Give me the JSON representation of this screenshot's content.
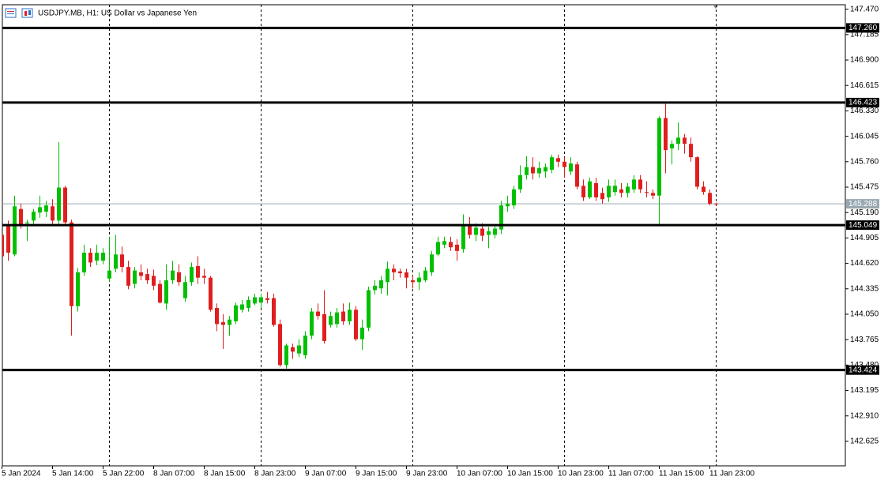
{
  "chart_data": {
    "type": "candlestick",
    "title": "USDJPY.MB, H1:  US Dollar vs Japanese Yen",
    "up_color": "#00c000",
    "down_color": "#e01e1e",
    "ylim": [
      142.35,
      147.52
    ],
    "yticks": [
      {
        "value": 147.47,
        "label": "147.470"
      },
      147.185,
      {
        "value": 146.9,
        "label": "146.900"
      },
      146.615,
      {
        "value": 146.33,
        "label": "146.330"
      },
      146.045,
      {
        "value": 145.76,
        "label": "145.760"
      },
      145.475,
      {
        "value": 145.19,
        "label": "145.190"
      },
      144.905,
      {
        "value": 144.62,
        "label": "144.620"
      },
      144.335,
      {
        "value": 144.05,
        "label": "144.050"
      },
      143.765,
      {
        "value": 143.48,
        "label": "143.480"
      },
      143.195,
      {
        "value": 142.91,
        "label": "142.910"
      },
      142.625
    ],
    "levels": [
      {
        "value": 147.26,
        "label": "147.260"
      },
      {
        "value": 146.423,
        "label": "146.423"
      },
      {
        "value": 145.049,
        "label": "145.049"
      },
      {
        "value": 143.424,
        "label": "143.424"
      }
    ],
    "bid": {
      "value": 145.288,
      "label": "145.288"
    },
    "categories": [
      "5 Jan 2024",
      null,
      null,
      null,
      null,
      null,
      null,
      null,
      "5 Jan 14:00",
      null,
      null,
      null,
      null,
      null,
      null,
      null,
      "5 Jan 22:00",
      null,
      null,
      null,
      null,
      null,
      null,
      null,
      "8 Jan 07:00",
      null,
      null,
      null,
      null,
      null,
      null,
      null,
      "8 Jan 15:00",
      null,
      null,
      null,
      null,
      null,
      null,
      null,
      "8 Jan 23:00",
      null,
      null,
      null,
      null,
      null,
      null,
      null,
      "9 Jan 07:00",
      null,
      null,
      null,
      null,
      null,
      null,
      null,
      "9 Jan 15:00",
      null,
      null,
      null,
      null,
      null,
      null,
      null,
      "9 Jan 23:00",
      null,
      null,
      null,
      null,
      null,
      null,
      null,
      "10 Jan 07:00",
      null,
      null,
      null,
      null,
      null,
      null,
      null,
      "10 Jan 15:00",
      null,
      null,
      null,
      null,
      null,
      null,
      null,
      "10 Jan 23:00",
      null,
      null,
      null,
      null,
      null,
      null,
      null,
      "11 Jan 07:00",
      null,
      null,
      null,
      null,
      null,
      null,
      null,
      "11 Jan 15:00",
      null,
      null,
      null,
      null,
      null,
      null,
      null,
      "11 Jan 23:00",
      null
    ],
    "ohlc": [
      [
        144.94,
        144.96,
        144.65,
        144.7
      ],
      [
        145.05,
        145.1,
        144.65,
        144.74
      ],
      [
        144.72,
        145.38,
        144.7,
        145.26
      ],
      [
        145.23,
        145.29,
        145.01,
        145.05
      ],
      [
        145.07,
        145.11,
        144.87,
        145.08
      ],
      [
        145.1,
        145.23,
        145.05,
        145.2
      ],
      [
        145.19,
        145.38,
        145.13,
        145.25
      ],
      [
        145.2,
        145.32,
        145.14,
        145.27
      ],
      [
        145.26,
        145.34,
        145.05,
        145.1
      ],
      [
        145.1,
        145.98,
        145.05,
        145.47
      ],
      [
        145.47,
        145.49,
        145.04,
        145.08
      ],
      [
        145.08,
        145.11,
        143.81,
        144.14
      ],
      [
        144.14,
        144.57,
        144.08,
        144.52
      ],
      [
        144.52,
        144.83,
        144.48,
        144.74
      ],
      [
        144.74,
        144.79,
        144.58,
        144.63
      ],
      [
        144.65,
        144.83,
        144.6,
        144.74
      ],
      [
        144.65,
        144.79,
        144.61,
        144.74
      ],
      [
        144.45,
        144.92,
        144.41,
        144.54
      ],
      [
        144.56,
        144.94,
        144.52,
        144.72
      ],
      [
        144.72,
        144.81,
        144.52,
        144.58
      ],
      [
        144.58,
        144.65,
        144.33,
        144.37
      ],
      [
        144.39,
        144.58,
        144.34,
        144.54
      ],
      [
        144.52,
        144.61,
        144.43,
        144.48
      ],
      [
        144.5,
        144.56,
        144.39,
        144.43
      ],
      [
        144.48,
        144.55,
        144.32,
        144.37
      ],
      [
        144.39,
        144.43,
        144.17,
        144.18
      ],
      [
        144.17,
        144.61,
        144.1,
        144.43
      ],
      [
        144.43,
        144.65,
        144.39,
        144.54
      ],
      [
        144.52,
        144.61,
        144.37,
        144.41
      ],
      [
        144.23,
        144.48,
        144.19,
        144.41
      ],
      [
        144.41,
        144.63,
        144.37,
        144.58
      ],
      [
        144.59,
        144.7,
        144.39,
        144.46
      ],
      [
        144.48,
        144.56,
        144.39,
        144.46
      ],
      [
        144.46,
        144.48,
        144.08,
        144.1
      ],
      [
        144.12,
        144.17,
        143.86,
        143.94
      ],
      [
        143.96,
        144.05,
        143.66,
        143.93
      ],
      [
        143.93,
        144.03,
        143.81,
        143.99
      ],
      [
        143.97,
        144.18,
        143.94,
        144.15
      ],
      [
        144.1,
        144.21,
        144.07,
        144.16
      ],
      [
        144.12,
        144.25,
        144.08,
        144.21
      ],
      [
        144.17,
        144.28,
        144.15,
        144.24
      ],
      [
        144.18,
        144.28,
        144.12,
        144.24
      ],
      [
        144.23,
        144.3,
        144.17,
        144.21
      ],
      [
        144.23,
        144.28,
        143.91,
        143.93
      ],
      [
        143.94,
        143.99,
        143.46,
        143.48
      ],
      [
        143.48,
        143.72,
        143.44,
        143.7
      ],
      [
        143.68,
        143.72,
        143.55,
        143.63
      ],
      [
        143.61,
        143.77,
        143.57,
        143.7
      ],
      [
        143.59,
        143.86,
        143.55,
        143.81
      ],
      [
        143.81,
        144.12,
        143.77,
        144.08
      ],
      [
        144.08,
        144.17,
        143.99,
        144.03
      ],
      [
        144.05,
        144.32,
        143.72,
        143.75
      ],
      [
        143.93,
        144.08,
        143.9,
        144.03
      ],
      [
        143.94,
        144.12,
        143.9,
        144.07
      ],
      [
        144.08,
        144.17,
        143.93,
        143.97
      ],
      [
        143.97,
        144.18,
        143.93,
        144.1
      ],
      [
        144.1,
        144.14,
        143.75,
        143.77
      ],
      [
        143.77,
        143.99,
        143.65,
        143.9
      ],
      [
        143.9,
        144.36,
        143.86,
        144.32
      ],
      [
        144.32,
        144.43,
        144.27,
        144.37
      ],
      [
        144.34,
        144.48,
        144.28,
        144.43
      ],
      [
        144.41,
        144.64,
        144.26,
        144.56
      ],
      [
        144.56,
        144.61,
        144.43,
        144.52
      ],
      [
        144.53,
        144.56,
        144.46,
        144.51
      ],
      [
        144.52,
        144.56,
        144.34,
        144.46
      ],
      [
        144.43,
        144.48,
        144.34,
        144.41
      ],
      [
        144.41,
        144.52,
        144.32,
        144.46
      ],
      [
        144.43,
        144.58,
        144.41,
        144.54
      ],
      [
        144.52,
        144.76,
        144.48,
        144.72
      ],
      [
        144.72,
        144.92,
        144.7,
        144.86
      ],
      [
        144.83,
        144.92,
        144.79,
        144.87
      ],
      [
        144.86,
        144.92,
        144.76,
        144.8
      ],
      [
        144.83,
        144.89,
        144.65,
        144.76
      ],
      [
        144.78,
        145.17,
        144.74,
        145.06
      ],
      [
        145.06,
        145.14,
        144.9,
        144.94
      ],
      [
        144.94,
        145.07,
        144.87,
        145.02
      ],
      [
        145.01,
        145.07,
        144.87,
        144.93
      ],
      [
        144.94,
        145.03,
        144.79,
        144.98
      ],
      [
        144.94,
        145.06,
        144.9,
        145.01
      ],
      [
        145.0,
        145.32,
        144.95,
        145.27
      ],
      [
        145.26,
        145.38,
        145.2,
        145.29
      ],
      [
        145.27,
        145.49,
        145.23,
        145.45
      ],
      [
        145.45,
        145.72,
        145.41,
        145.61
      ],
      [
        145.61,
        145.82,
        145.56,
        145.7
      ],
      [
        145.7,
        145.81,
        145.56,
        145.63
      ],
      [
        145.63,
        145.76,
        145.58,
        145.69
      ],
      [
        145.65,
        145.74,
        145.58,
        145.7
      ],
      [
        145.67,
        145.84,
        145.63,
        145.81
      ],
      [
        145.8,
        145.84,
        145.7,
        145.76
      ],
      [
        145.76,
        145.81,
        145.58,
        145.7
      ],
      [
        145.65,
        145.81,
        145.61,
        145.74
      ],
      [
        145.73,
        145.76,
        145.45,
        145.48
      ],
      [
        145.49,
        145.56,
        145.32,
        145.36
      ],
      [
        145.36,
        145.58,
        145.34,
        145.54
      ],
      [
        145.52,
        145.58,
        145.32,
        145.36
      ],
      [
        145.41,
        145.47,
        145.29,
        145.34
      ],
      [
        145.36,
        145.56,
        145.31,
        145.49
      ],
      [
        145.42,
        145.56,
        145.38,
        145.49
      ],
      [
        145.45,
        145.52,
        145.36,
        145.41
      ],
      [
        145.41,
        145.52,
        145.36,
        145.48
      ],
      [
        145.45,
        145.61,
        145.41,
        145.56
      ],
      [
        145.56,
        145.61,
        145.41,
        145.45
      ],
      [
        145.42,
        145.54,
        145.36,
        145.41
      ],
      [
        145.41,
        145.45,
        145.34,
        145.38
      ],
      [
        145.38,
        146.27,
        145.05,
        146.25
      ],
      [
        146.25,
        146.41,
        145.63,
        145.89
      ],
      [
        145.91,
        146.0,
        145.73,
        145.96
      ],
      [
        145.96,
        146.2,
        145.89,
        146.03
      ],
      [
        146.03,
        146.07,
        145.85,
        145.96
      ],
      [
        145.96,
        146.03,
        145.76,
        145.81
      ],
      [
        145.81,
        145.82,
        145.45,
        145.48
      ],
      [
        145.48,
        145.54,
        145.39,
        145.42
      ],
      [
        145.41,
        145.45,
        145.27,
        145.29
      ],
      [
        145.29,
        145.3,
        145.28,
        145.288
      ]
    ]
  }
}
